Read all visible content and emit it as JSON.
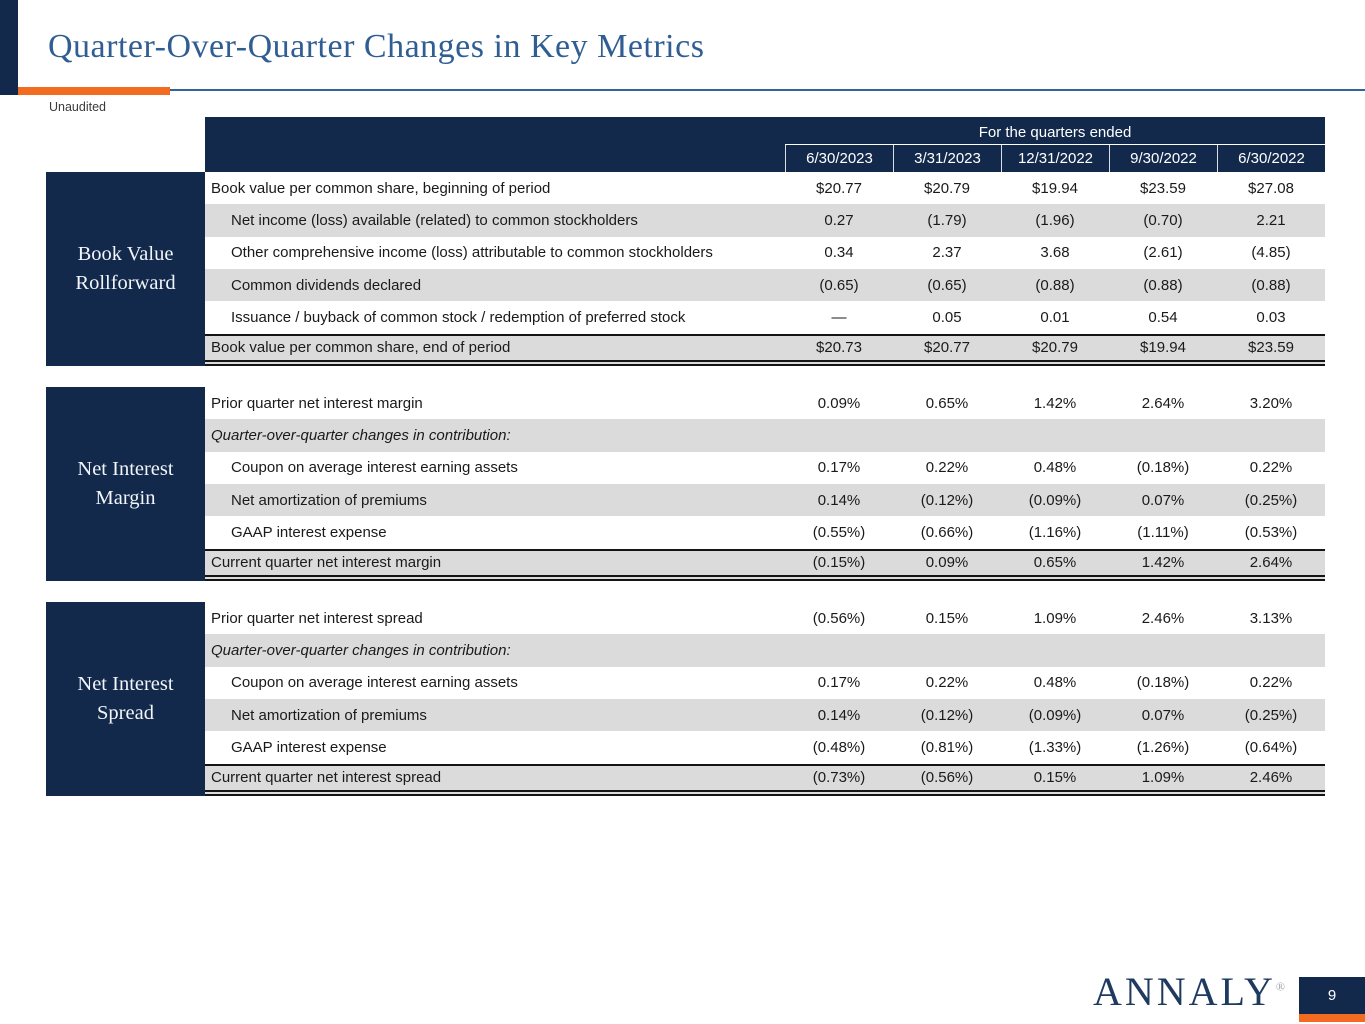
{
  "page": {
    "title": "Quarter-Over-Quarter Changes in Key Metrics",
    "subtitle": "Unaudited",
    "page_number": "9",
    "logo_text": "ANNALY",
    "logo_reg": "®"
  },
  "colors": {
    "navy": "#12294B",
    "title_blue": "#305E93",
    "accent_orange": "#F26B21",
    "row_gray": "#DBDBDB",
    "logo_navy": "#1E3A5F"
  },
  "table": {
    "header_group": "For the quarters ended",
    "columns": [
      "6/30/2023",
      "3/31/2023",
      "12/31/2022",
      "9/30/2022",
      "6/30/2022"
    ],
    "sections": [
      {
        "label": "Book Value\nRollforward",
        "rows": [
          {
            "type": "data",
            "indent": false,
            "shade": false,
            "label": "Book value per common share, beginning of period",
            "values": [
              "$20.77",
              "$20.79",
              "$19.94",
              "$23.59",
              "$27.08"
            ]
          },
          {
            "type": "data",
            "indent": true,
            "shade": true,
            "label": "Net income (loss) available (related) to common stockholders",
            "values": [
              "0.27",
              "(1.79)",
              "(1.96)",
              "(0.70)",
              "2.21"
            ]
          },
          {
            "type": "data",
            "indent": true,
            "shade": false,
            "label": "Other comprehensive income (loss) attributable to common stockholders",
            "values": [
              "0.34",
              "2.37",
              "3.68",
              "(2.61)",
              "(4.85)"
            ]
          },
          {
            "type": "data",
            "indent": true,
            "shade": true,
            "label": "Common dividends declared",
            "values": [
              "(0.65)",
              "(0.65)",
              "(0.88)",
              "(0.88)",
              "(0.88)"
            ]
          },
          {
            "type": "data",
            "indent": true,
            "shade": false,
            "label": "Issuance / buyback of common stock / redemption of preferred stock",
            "values": [
              "—",
              "0.05",
              "0.01",
              "0.54",
              "0.03"
            ]
          },
          {
            "type": "total",
            "indent": false,
            "shade": true,
            "label": "Book value per common share, end of period",
            "values": [
              "$20.73",
              "$20.77",
              "$20.79",
              "$19.94",
              "$23.59"
            ]
          }
        ]
      },
      {
        "label": "Net Interest\nMargin",
        "rows": [
          {
            "type": "data",
            "indent": false,
            "shade": false,
            "label": "Prior quarter net interest margin",
            "values": [
              "0.09%",
              "0.65%",
              "1.42%",
              "2.64%",
              "3.20%"
            ]
          },
          {
            "type": "note",
            "indent": false,
            "shade": true,
            "label": "Quarter-over-quarter changes in contribution:",
            "values": [
              "",
              "",
              "",
              "",
              ""
            ]
          },
          {
            "type": "data",
            "indent": true,
            "shade": false,
            "label": "Coupon on average interest earning assets",
            "values": [
              "0.17%",
              "0.22%",
              "0.48%",
              "(0.18%)",
              "0.22%"
            ]
          },
          {
            "type": "data",
            "indent": true,
            "shade": true,
            "label": "Net amortization of premiums",
            "values": [
              "0.14%",
              "(0.12%)",
              "(0.09%)",
              "0.07%",
              "(0.25%)"
            ]
          },
          {
            "type": "data",
            "indent": true,
            "shade": false,
            "label": "GAAP interest expense",
            "values": [
              "(0.55%)",
              "(0.66%)",
              "(1.16%)",
              "(1.11%)",
              "(0.53%)"
            ]
          },
          {
            "type": "total",
            "indent": false,
            "shade": true,
            "label": "Current quarter net interest margin",
            "values": [
              "(0.15%)",
              "0.09%",
              "0.65%",
              "1.42%",
              "2.64%"
            ]
          }
        ]
      },
      {
        "label": "Net Interest\nSpread",
        "rows": [
          {
            "type": "data",
            "indent": false,
            "shade": false,
            "label": "Prior quarter net interest spread",
            "values": [
              "(0.56%)",
              "0.15%",
              "1.09%",
              "2.46%",
              "3.13%"
            ]
          },
          {
            "type": "note",
            "indent": false,
            "shade": true,
            "label": "Quarter-over-quarter changes in contribution:",
            "values": [
              "",
              "",
              "",
              "",
              ""
            ]
          },
          {
            "type": "data",
            "indent": true,
            "shade": false,
            "label": "Coupon on average interest earning assets",
            "values": [
              "0.17%",
              "0.22%",
              "0.48%",
              "(0.18%)",
              "0.22%"
            ]
          },
          {
            "type": "data",
            "indent": true,
            "shade": true,
            "label": "Net amortization of premiums",
            "values": [
              "0.14%",
              "(0.12%)",
              "(0.09%)",
              "0.07%",
              "(0.25%)"
            ]
          },
          {
            "type": "data",
            "indent": true,
            "shade": false,
            "label": "GAAP interest expense",
            "values": [
              "(0.48%)",
              "(0.81%)",
              "(1.33%)",
              "(1.26%)",
              "(0.64%)"
            ]
          },
          {
            "type": "total",
            "indent": false,
            "shade": true,
            "label": "Current quarter net interest spread",
            "values": [
              "(0.73%)",
              "(0.56%)",
              "0.15%",
              "1.09%",
              "2.46%"
            ]
          }
        ]
      }
    ]
  }
}
